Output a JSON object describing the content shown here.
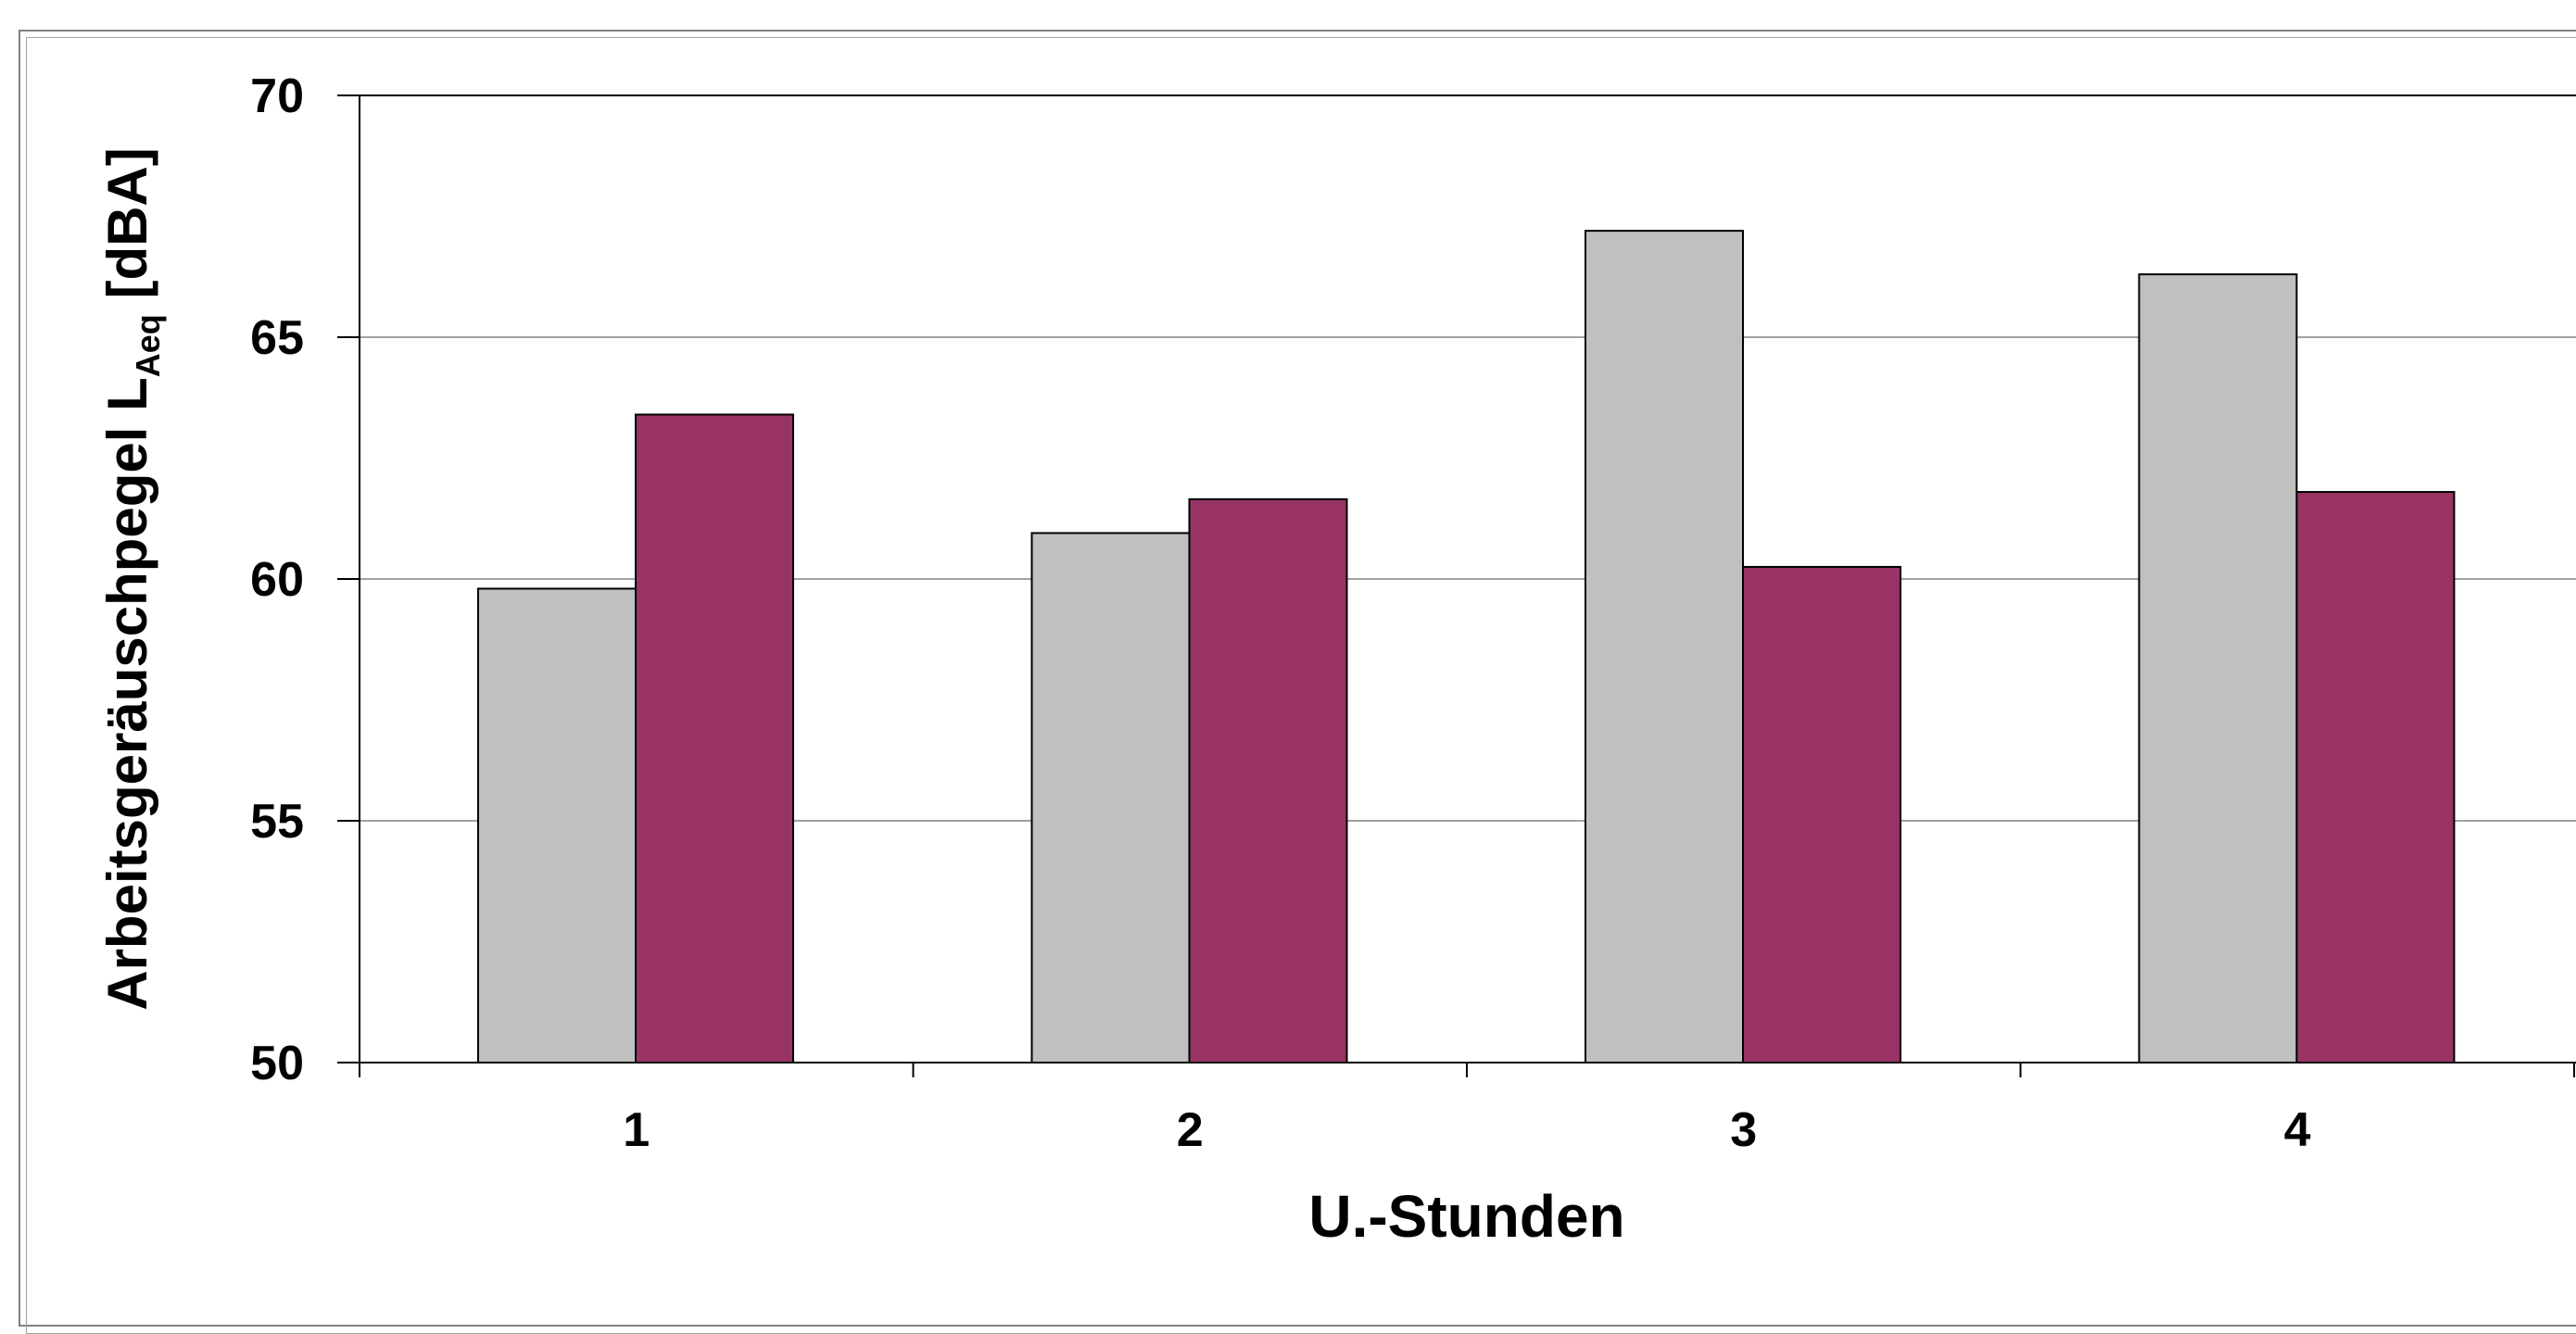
{
  "chart_data": {
    "type": "bar",
    "categories": [
      "1",
      "2",
      "3",
      "4"
    ],
    "series": [
      {
        "color": "#c0c0c0",
        "values": [
          59.8,
          60.95,
          67.2,
          66.3
        ]
      },
      {
        "color": "#993366",
        "values": [
          63.4,
          61.65,
          60.25,
          61.8
        ]
      }
    ],
    "title": "",
    "xlabel": "U.-Stunden",
    "ylabel": {
      "main": "Arbeitsgeräuschpegel L",
      "subscript": "Aeq",
      "unit": " [dBA]"
    },
    "ylim": [
      50,
      70
    ],
    "yticks": [
      "50",
      "55",
      "60",
      "65",
      "70"
    ],
    "grid": true,
    "legend": "none"
  }
}
